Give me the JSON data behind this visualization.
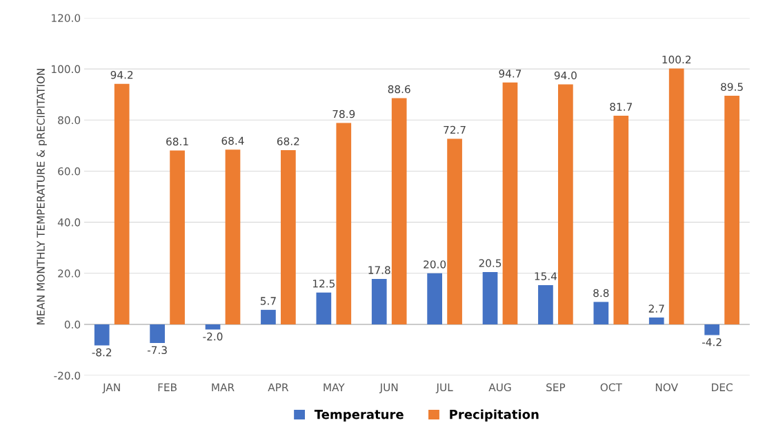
{
  "chart_data": {
    "type": "bar",
    "ylabel": "MEAN MONTHLY TEMPERATURE & pRECIPITATION",
    "categories": [
      "JAN",
      "FEB",
      "MAR",
      "APR",
      "MAY",
      "JUN",
      "JUL",
      "AUG",
      "SEP",
      "OCT",
      "NOV",
      "DEC"
    ],
    "series": [
      {
        "name": "Temperature",
        "color": "#4472c4",
        "values": [
          -8.2,
          -7.3,
          -2.0,
          5.7,
          12.5,
          17.8,
          20.0,
          20.5,
          15.4,
          8.8,
          2.7,
          -4.2
        ],
        "value_labels": [
          "-8.2",
          "-7.3",
          "-2.0",
          "5.7",
          "12.5",
          "17.8",
          "20.0",
          "20.5",
          "15.4",
          "8.8",
          "2.7",
          "-4.2"
        ]
      },
      {
        "name": "Precipitation",
        "color": "#ed7d31",
        "values": [
          94.2,
          68.1,
          68.4,
          68.2,
          78.9,
          88.6,
          72.7,
          94.7,
          94.0,
          81.7,
          100.2,
          89.5
        ],
        "value_labels": [
          "94.2",
          "68.1",
          "68.4",
          "68.2",
          "78.9",
          "88.6",
          "72.7",
          "94.7",
          "94.0",
          "81.7",
          "100.2",
          "89.5"
        ]
      }
    ],
    "ylim": [
      -20,
      120
    ],
    "yticks": [
      {
        "value": -20,
        "label": "-20.0"
      },
      {
        "value": 0,
        "label": "0.0"
      },
      {
        "value": 20,
        "label": "20.0"
      },
      {
        "value": 40,
        "label": "40.0"
      },
      {
        "value": 60,
        "label": "60.0"
      },
      {
        "value": 80,
        "label": "80.0"
      },
      {
        "value": 100,
        "label": "100.0"
      },
      {
        "value": 120,
        "label": "120.0"
      }
    ],
    "grid": "y",
    "legend": "bottom"
  }
}
